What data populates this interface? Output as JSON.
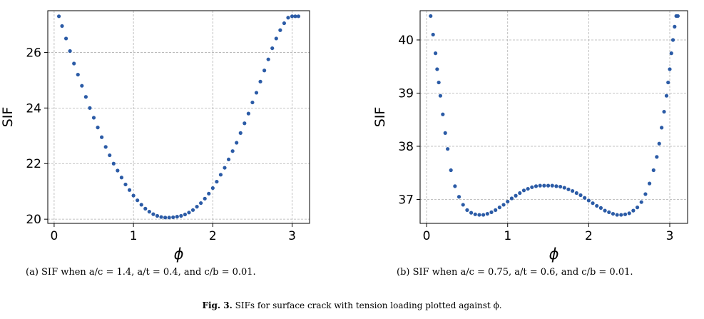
{
  "figure_caption": {
    "label": "Fig. 3.",
    "text": "SIFs for surface crack with tension loading plotted against ϕ."
  },
  "panels": [
    {
      "caption": "(a) SIF when a/c = 1.4, a/t = 0.4, and c/b = 0.01."
    },
    {
      "caption": "(b) SIF when a/c = 0.75, a/t = 0.6, and c/b = 0.01."
    }
  ],
  "colors": {
    "marker": "#2b5ba6",
    "grid": "#b0b0b0",
    "axis": "#000000"
  },
  "chart_data": [
    {
      "type": "scatter",
      "title": "",
      "xlabel": "ϕ",
      "ylabel": "SIF",
      "xlim": [
        -0.08,
        3.22
      ],
      "ylim": [
        19.85,
        27.5
      ],
      "xticks": [
        0,
        1,
        2,
        3
      ],
      "yticks": [
        20,
        22,
        24,
        26
      ],
      "grid": true,
      "legend": "none",
      "series": [
        {
          "x": [
            0.06,
            0.1,
            0.15,
            0.2,
            0.25,
            0.3,
            0.35,
            0.4,
            0.45,
            0.5,
            0.55,
            0.6,
            0.65,
            0.7,
            0.75,
            0.8,
            0.85,
            0.9,
            0.95,
            1.0,
            1.05,
            1.1,
            1.15,
            1.2,
            1.25,
            1.3,
            1.35,
            1.4,
            1.45,
            1.5,
            1.55,
            1.6,
            1.65,
            1.7,
            1.75,
            1.8,
            1.85,
            1.9,
            1.95,
            2.0,
            2.05,
            2.1,
            2.15,
            2.2,
            2.25,
            2.3,
            2.35,
            2.4,
            2.45,
            2.5,
            2.55,
            2.6,
            2.65,
            2.7,
            2.75,
            2.8,
            2.85,
            2.9,
            2.95,
            3.0,
            3.04,
            3.08
          ],
          "y": [
            27.3,
            26.95,
            26.5,
            26.05,
            25.6,
            25.2,
            24.8,
            24.4,
            24.0,
            23.65,
            23.3,
            22.95,
            22.6,
            22.3,
            22.0,
            21.75,
            21.5,
            21.25,
            21.05,
            20.85,
            20.68,
            20.52,
            20.38,
            20.27,
            20.18,
            20.12,
            20.08,
            20.06,
            20.06,
            20.07,
            20.09,
            20.12,
            20.17,
            20.24,
            20.33,
            20.45,
            20.58,
            20.74,
            20.92,
            21.12,
            21.35,
            21.6,
            21.85,
            22.15,
            22.45,
            22.75,
            23.1,
            23.45,
            23.8,
            24.2,
            24.55,
            24.95,
            25.35,
            25.75,
            26.15,
            26.5,
            26.8,
            27.05,
            27.25,
            27.3,
            27.3,
            27.3
          ]
        }
      ]
    },
    {
      "type": "scatter",
      "title": "",
      "xlabel": "ϕ",
      "ylabel": "SIF",
      "xlim": [
        -0.08,
        3.22
      ],
      "ylim": [
        36.55,
        40.55
      ],
      "xticks": [
        0,
        1,
        2,
        3
      ],
      "yticks": [
        37,
        38,
        39,
        40
      ],
      "grid": true,
      "legend": "none",
      "series": [
        {
          "x": [
            0.05,
            0.08,
            0.11,
            0.13,
            0.15,
            0.17,
            0.2,
            0.23,
            0.26,
            0.3,
            0.35,
            0.4,
            0.45,
            0.5,
            0.55,
            0.6,
            0.65,
            0.7,
            0.75,
            0.8,
            0.85,
            0.9,
            0.95,
            1.0,
            1.05,
            1.1,
            1.15,
            1.2,
            1.25,
            1.3,
            1.35,
            1.4,
            1.45,
            1.5,
            1.55,
            1.6,
            1.65,
            1.7,
            1.75,
            1.8,
            1.85,
            1.9,
            1.95,
            2.0,
            2.05,
            2.1,
            2.15,
            2.2,
            2.25,
            2.3,
            2.35,
            2.4,
            2.45,
            2.5,
            2.55,
            2.6,
            2.65,
            2.7,
            2.75,
            2.8,
            2.84,
            2.87,
            2.9,
            2.93,
            2.96,
            2.98,
            3.0,
            3.02,
            3.04,
            3.06,
            3.08,
            3.1
          ],
          "y": [
            40.45,
            40.1,
            39.75,
            39.45,
            39.2,
            38.95,
            38.6,
            38.25,
            37.95,
            37.55,
            37.25,
            37.05,
            36.9,
            36.8,
            36.75,
            36.72,
            36.71,
            36.71,
            36.73,
            36.76,
            36.8,
            36.85,
            36.9,
            36.96,
            37.02,
            37.07,
            37.12,
            37.17,
            37.2,
            37.23,
            37.25,
            37.26,
            37.26,
            37.26,
            37.26,
            37.25,
            37.24,
            37.22,
            37.19,
            37.16,
            37.12,
            37.08,
            37.03,
            36.98,
            36.93,
            36.88,
            36.84,
            36.79,
            36.76,
            36.73,
            36.71,
            36.71,
            36.72,
            36.74,
            36.79,
            36.85,
            36.95,
            37.1,
            37.3,
            37.55,
            37.8,
            38.05,
            38.35,
            38.65,
            38.95,
            39.2,
            39.45,
            39.75,
            40.0,
            40.25,
            40.45,
            40.45
          ]
        }
      ]
    }
  ]
}
